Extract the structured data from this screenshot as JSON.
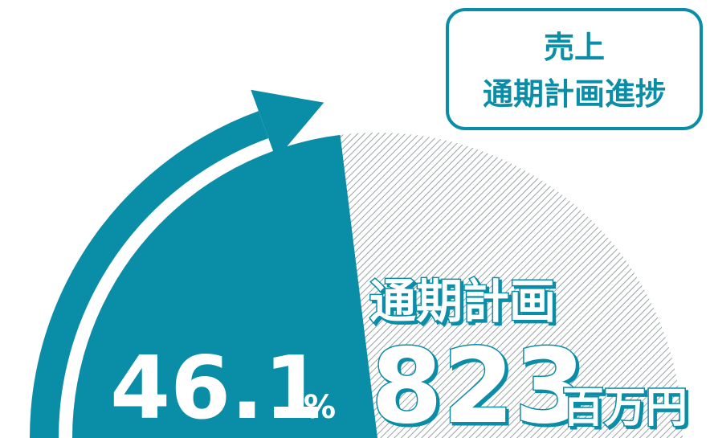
{
  "chart_data": {
    "type": "pie",
    "title": [
      "売上",
      "通期計画進捗"
    ],
    "values": [
      46.1
    ],
    "value_unit": "%",
    "plan_label": "通期計画",
    "plan_value": 823,
    "plan_unit": "百万円",
    "color": "#0a8ea8"
  }
}
